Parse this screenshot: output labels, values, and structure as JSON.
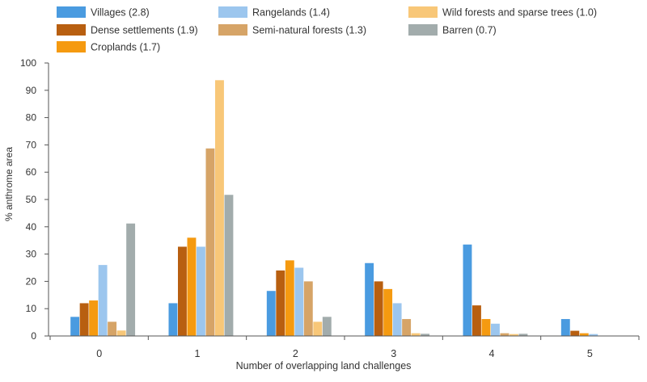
{
  "chart_data": {
    "type": "bar",
    "title": "",
    "xlabel": "Number of overlapping land challenges",
    "ylabel": "% anthrome area",
    "ylim": [
      0,
      100
    ],
    "yticks": [
      0,
      10,
      20,
      30,
      40,
      50,
      60,
      70,
      80,
      90,
      100
    ],
    "grid": false,
    "legend_position": "top",
    "categories": [
      "0",
      "1",
      "2",
      "3",
      "4",
      "5"
    ],
    "series": [
      {
        "name": "Villages (2.8)",
        "color": "#4a9be0",
        "values": [
          7,
          12,
          16.5,
          26.7,
          33.5,
          6.2
        ]
      },
      {
        "name": "Dense settlements (1.9)",
        "color": "#b85f10",
        "values": [
          12,
          32.7,
          24,
          20,
          11.2,
          1.9
        ]
      },
      {
        "name": "Croplands (1.7)",
        "color": "#f59a10",
        "values": [
          13,
          36,
          27.7,
          17.2,
          6.2,
          1
        ]
      },
      {
        "name": "Rangelands (1.4)",
        "color": "#9cc6ee",
        "values": [
          26,
          32.7,
          25,
          12,
          4.5,
          0.7
        ]
      },
      {
        "name": "Semi-natural forests (1.3)",
        "color": "#d6a467",
        "values": [
          5.2,
          68.7,
          20,
          6.2,
          1,
          0
        ]
      },
      {
        "name": "Wild forests and sparse trees (1.0)",
        "color": "#f8c778",
        "values": [
          2,
          93.7,
          5.2,
          1,
          0.7,
          0
        ]
      },
      {
        "name": "Barren (0.7)",
        "color": "#a2acac",
        "values": [
          41.2,
          51.7,
          7,
          0.8,
          0.8,
          0
        ]
      }
    ],
    "legend_order": [
      "Villages (2.8)",
      "Rangelands (1.4)",
      "Wild forests and sparse trees (1.0)",
      "Dense settlements (1.9)",
      "Semi-natural forests (1.3)",
      "Barren (0.7)",
      "Croplands (1.7)"
    ]
  }
}
